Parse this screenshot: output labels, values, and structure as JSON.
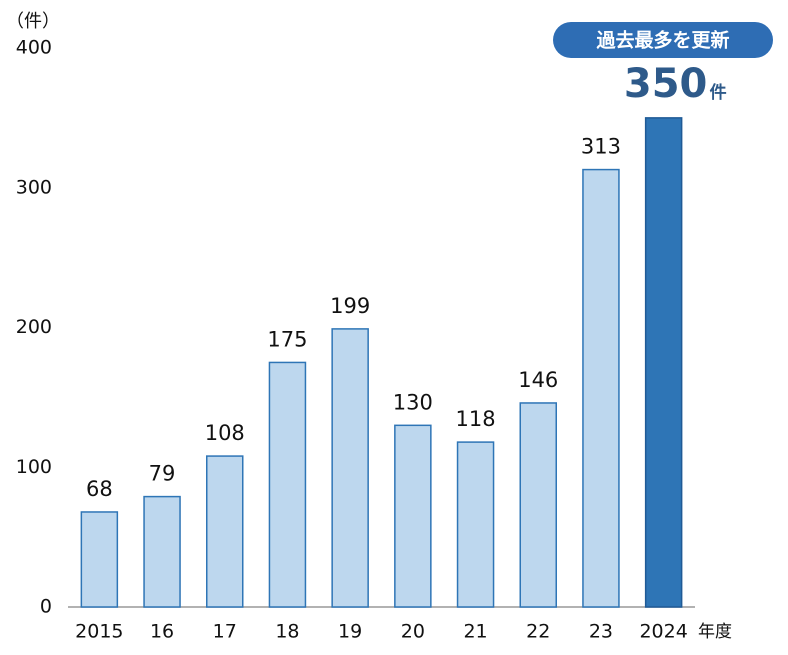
{
  "chart_data": {
    "type": "bar",
    "y_label": "（件）",
    "x_label": "年度",
    "categories": [
      "2015",
      "16",
      "17",
      "18",
      "19",
      "20",
      "21",
      "22",
      "23",
      "2024"
    ],
    "values": [
      68,
      79,
      108,
      175,
      199,
      130,
      118,
      146,
      313,
      350
    ],
    "colors": [
      "#bdd7ee",
      "#bdd7ee",
      "#bdd7ee",
      "#bdd7ee",
      "#bdd7ee",
      "#bdd7ee",
      "#bdd7ee",
      "#bdd7ee",
      "#bdd7ee",
      "#2e75b6"
    ],
    "ylim": [
      0,
      400
    ],
    "yticks": [
      0,
      100,
      200,
      300,
      400
    ],
    "grid": false,
    "annotations": {
      "callout": "過去最多を更新",
      "highlight_unit": "件"
    }
  }
}
